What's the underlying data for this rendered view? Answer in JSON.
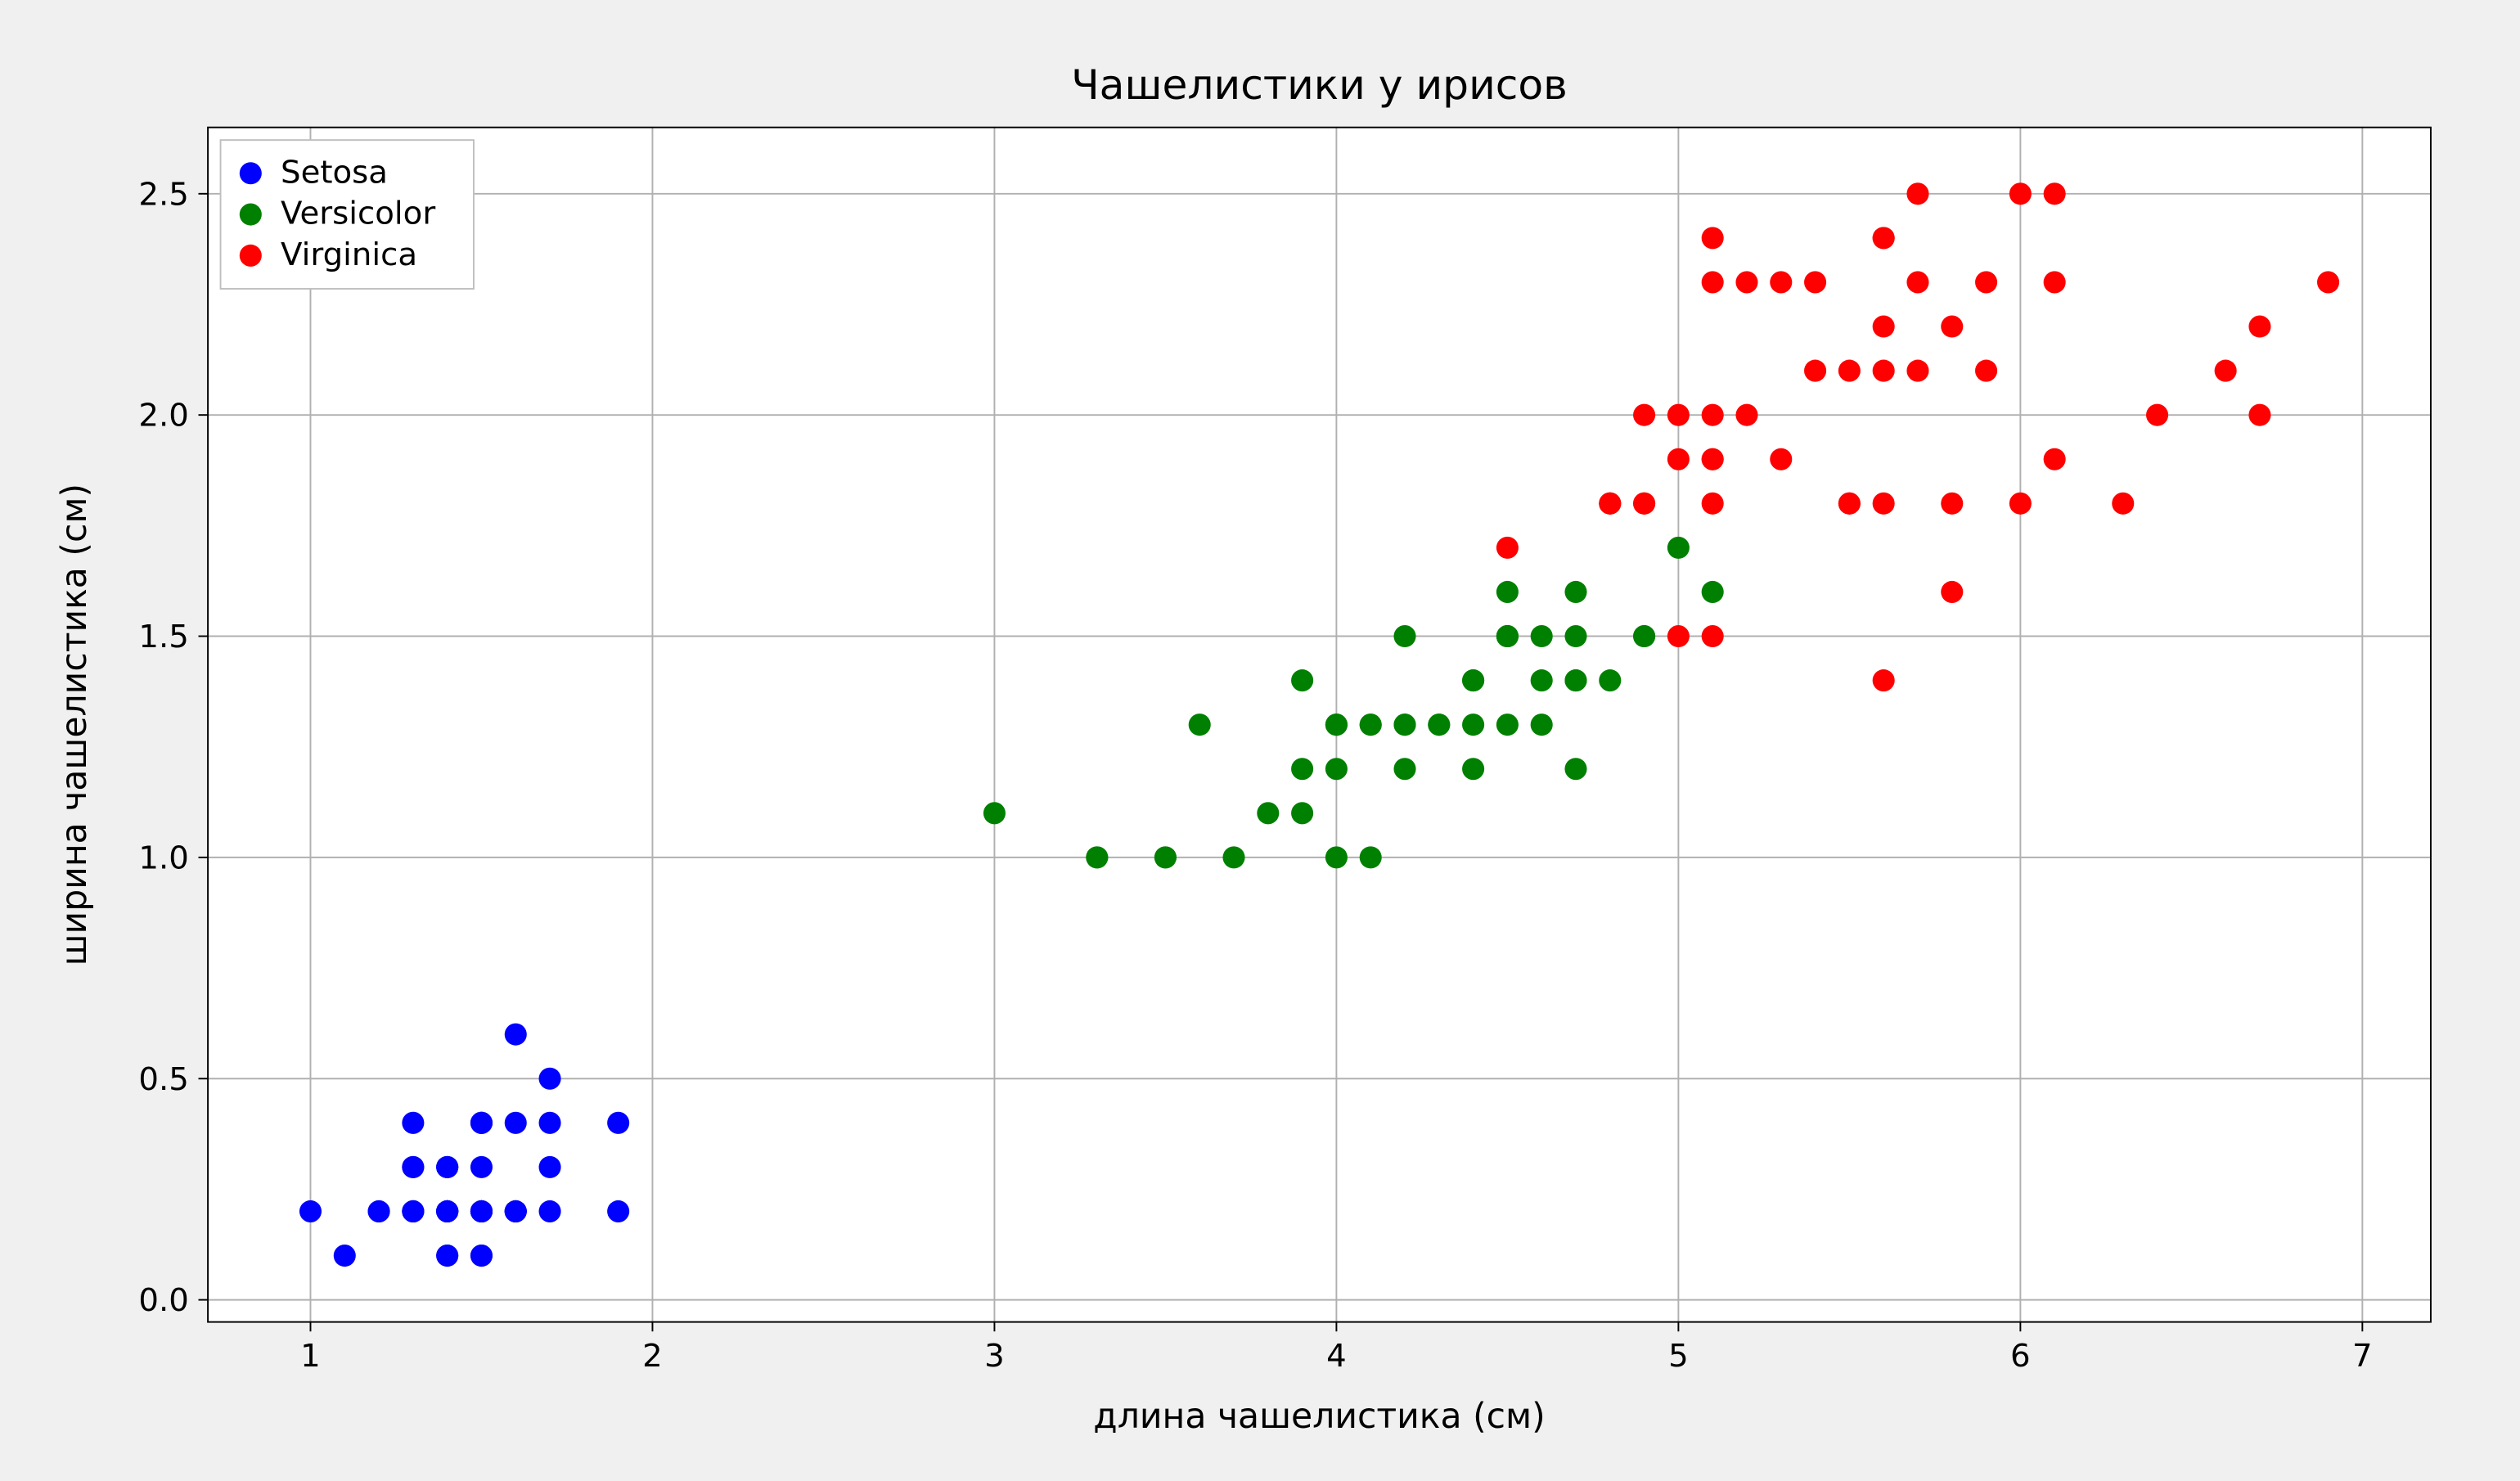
{
  "chart": {
    "type": "scatter",
    "title": "Чашелистики у ирисов",
    "title_fontsize": 26,
    "xlabel": "длина чашелистика (см)",
    "ylabel": "ширина чашелистика (см)",
    "label_fontsize": 22,
    "tick_fontsize": 20,
    "background_color": "#f0f0f0",
    "plot_background": "#ffffff",
    "grid_color": "#b0b0b0",
    "grid": true,
    "frame_color": "#000000",
    "xlim": [
      0.7,
      7.2
    ],
    "ylim": [
      -0.05,
      2.65
    ],
    "xticks": [
      1,
      2,
      3,
      4,
      5,
      6,
      7
    ],
    "yticks": [
      0.0,
      0.5,
      1.0,
      1.5,
      2.0,
      2.5
    ],
    "marker_radius": 7,
    "legend": {
      "location": "upper-left",
      "items": [
        "Setosa",
        "Versicolor",
        "Virginica"
      ],
      "face_color": "#ffffff",
      "edge_color": "#bfbfbf"
    },
    "series": [
      {
        "name": "Setosa",
        "color": "#0000ff",
        "points": [
          [
            1.4,
            0.2
          ],
          [
            1.4,
            0.2
          ],
          [
            1.3,
            0.2
          ],
          [
            1.5,
            0.2
          ],
          [
            1.4,
            0.2
          ],
          [
            1.7,
            0.4
          ],
          [
            1.4,
            0.3
          ],
          [
            1.5,
            0.2
          ],
          [
            1.4,
            0.2
          ],
          [
            1.5,
            0.1
          ],
          [
            1.5,
            0.2
          ],
          [
            1.6,
            0.2
          ],
          [
            1.4,
            0.1
          ],
          [
            1.1,
            0.1
          ],
          [
            1.2,
            0.2
          ],
          [
            1.5,
            0.4
          ],
          [
            1.3,
            0.4
          ],
          [
            1.4,
            0.3
          ],
          [
            1.7,
            0.3
          ],
          [
            1.5,
            0.3
          ],
          [
            1.7,
            0.2
          ],
          [
            1.5,
            0.4
          ],
          [
            1.0,
            0.2
          ],
          [
            1.7,
            0.5
          ],
          [
            1.9,
            0.2
          ],
          [
            1.6,
            0.2
          ],
          [
            1.6,
            0.4
          ],
          [
            1.5,
            0.2
          ],
          [
            1.4,
            0.2
          ],
          [
            1.6,
            0.2
          ],
          [
            1.6,
            0.2
          ],
          [
            1.5,
            0.4
          ],
          [
            1.5,
            0.1
          ],
          [
            1.4,
            0.2
          ],
          [
            1.5,
            0.2
          ],
          [
            1.2,
            0.2
          ],
          [
            1.3,
            0.2
          ],
          [
            1.4,
            0.1
          ],
          [
            1.3,
            0.2
          ],
          [
            1.5,
            0.2
          ],
          [
            1.3,
            0.3
          ],
          [
            1.3,
            0.3
          ],
          [
            1.3,
            0.2
          ],
          [
            1.6,
            0.6
          ],
          [
            1.9,
            0.4
          ],
          [
            1.4,
            0.3
          ],
          [
            1.6,
            0.2
          ],
          [
            1.4,
            0.2
          ],
          [
            1.5,
            0.2
          ],
          [
            1.4,
            0.2
          ]
        ]
      },
      {
        "name": "Versicolor",
        "color": "#008000",
        "points": [
          [
            4.7,
            1.4
          ],
          [
            4.5,
            1.5
          ],
          [
            4.9,
            1.5
          ],
          [
            4.0,
            1.3
          ],
          [
            4.6,
            1.5
          ],
          [
            4.5,
            1.3
          ],
          [
            4.7,
            1.6
          ],
          [
            3.3,
            1.0
          ],
          [
            4.6,
            1.3
          ],
          [
            3.9,
            1.4
          ],
          [
            3.5,
            1.0
          ],
          [
            4.2,
            1.5
          ],
          [
            4.0,
            1.0
          ],
          [
            4.7,
            1.4
          ],
          [
            3.6,
            1.3
          ],
          [
            4.4,
            1.4
          ],
          [
            4.5,
            1.5
          ],
          [
            4.1,
            1.0
          ],
          [
            4.5,
            1.5
          ],
          [
            3.9,
            1.1
          ],
          [
            4.8,
            1.8
          ],
          [
            4.0,
            1.3
          ],
          [
            4.9,
            1.5
          ],
          [
            4.7,
            1.2
          ],
          [
            4.3,
            1.3
          ],
          [
            4.4,
            1.4
          ],
          [
            4.8,
            1.4
          ],
          [
            5.0,
            1.7
          ],
          [
            4.5,
            1.5
          ],
          [
            3.5,
            1.0
          ],
          [
            3.8,
            1.1
          ],
          [
            3.7,
            1.0
          ],
          [
            3.9,
            1.2
          ],
          [
            5.1,
            1.6
          ],
          [
            4.5,
            1.5
          ],
          [
            4.5,
            1.6
          ],
          [
            4.7,
            1.5
          ],
          [
            4.4,
            1.3
          ],
          [
            4.1,
            1.3
          ],
          [
            4.0,
            1.3
          ],
          [
            4.4,
            1.2
          ],
          [
            4.6,
            1.4
          ],
          [
            4.0,
            1.2
          ],
          [
            3.3,
            1.0
          ],
          [
            4.2,
            1.3
          ],
          [
            4.2,
            1.2
          ],
          [
            4.2,
            1.3
          ],
          [
            4.3,
            1.3
          ],
          [
            3.0,
            1.1
          ],
          [
            4.1,
            1.3
          ]
        ]
      },
      {
        "name": "Virginica",
        "color": "#ff0000",
        "points": [
          [
            6.0,
            2.5
          ],
          [
            5.1,
            1.9
          ],
          [
            5.9,
            2.1
          ],
          [
            5.6,
            1.8
          ],
          [
            5.8,
            2.2
          ],
          [
            6.6,
            2.1
          ],
          [
            4.5,
            1.7
          ],
          [
            6.3,
            1.8
          ],
          [
            5.8,
            1.8
          ],
          [
            6.1,
            2.5
          ],
          [
            5.1,
            2.0
          ],
          [
            5.3,
            1.9
          ],
          [
            5.5,
            2.1
          ],
          [
            5.0,
            2.0
          ],
          [
            5.1,
            2.4
          ],
          [
            5.3,
            2.3
          ],
          [
            5.5,
            1.8
          ],
          [
            6.7,
            2.2
          ],
          [
            6.9,
            2.3
          ],
          [
            5.0,
            1.5
          ],
          [
            5.7,
            2.3
          ],
          [
            4.9,
            2.0
          ],
          [
            6.7,
            2.0
          ],
          [
            4.9,
            1.8
          ],
          [
            5.7,
            2.1
          ],
          [
            6.0,
            1.8
          ],
          [
            4.8,
            1.8
          ],
          [
            4.9,
            1.8
          ],
          [
            5.6,
            2.1
          ],
          [
            5.8,
            1.6
          ],
          [
            6.1,
            1.9
          ],
          [
            6.4,
            2.0
          ],
          [
            5.6,
            2.2
          ],
          [
            5.1,
            1.5
          ],
          [
            5.6,
            1.4
          ],
          [
            6.1,
            2.3
          ],
          [
            5.6,
            2.4
          ],
          [
            5.5,
            1.8
          ],
          [
            4.8,
            1.8
          ],
          [
            5.4,
            2.1
          ],
          [
            5.6,
            2.4
          ],
          [
            5.1,
            2.3
          ],
          [
            5.1,
            1.9
          ],
          [
            5.9,
            2.3
          ],
          [
            5.7,
            2.5
          ],
          [
            5.2,
            2.3
          ],
          [
            5.0,
            1.9
          ],
          [
            5.2,
            2.0
          ],
          [
            5.4,
            2.3
          ],
          [
            5.1,
            1.8
          ]
        ]
      }
    ]
  }
}
